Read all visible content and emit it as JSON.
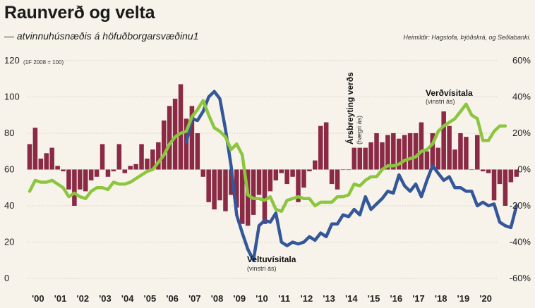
{
  "header": {
    "title": "Raunverð og velta",
    "subtitle": "— atvinnuhúsnæðis á höfuðborgarsvæðinu1",
    "source": "Heimildir: Hagstofa, Þjóðskrá, og Seðlabanki."
  },
  "colors": {
    "bars": "#8b2a45",
    "veltu": "#34579a",
    "verd": "#8cc63e",
    "background": "#f7f3ea"
  },
  "chart_data": {
    "type": "bar+line",
    "left_axis": {
      "note": "(1F 2008 = 100)",
      "ticks": [
        "0",
        "20",
        "40",
        "60",
        "80",
        "100",
        "120"
      ],
      "ylim": [
        0,
        120
      ]
    },
    "right_axis": {
      "ticks": [
        "-60%",
        "-40%",
        "-20%",
        "0%",
        "20%",
        "40%",
        "60%"
      ],
      "ylim": [
        -60,
        60
      ]
    },
    "x_labels": [
      "'00",
      "'01",
      "'02",
      "'03",
      "'04",
      "'05",
      "'06",
      "'07",
      "'08",
      "'09",
      "'10",
      "'11",
      "'12",
      "'13",
      "'14",
      "'15",
      "'16",
      "'17",
      "'18",
      "'19",
      "'20"
    ],
    "grid": true,
    "annotations": [
      {
        "id": "verd",
        "label": "Verðvísitala",
        "sub": "(vinstri ás)"
      },
      {
        "id": "veltu",
        "label": "Veltuvísitala",
        "sub": "(vinstri ás)"
      },
      {
        "id": "arsbr",
        "label": "Ársbreyting verðs",
        "sub": "(hægri ás)"
      }
    ],
    "series": [
      {
        "name": "Ársbreyting verðs",
        "axis": "right",
        "kind": "bar",
        "start": 2000.0,
        "step": 0.25,
        "values": [
          14,
          23,
          6,
          9,
          12,
          2,
          -1,
          -11,
          -20,
          -11,
          -12,
          -6,
          -4,
          14,
          -4,
          -1,
          14,
          -2,
          2,
          3,
          14,
          6,
          11,
          15,
          27,
          35,
          39,
          47,
          28,
          35,
          20,
          -4,
          -18,
          -22,
          -17,
          -23,
          -14,
          -21,
          -30,
          -31,
          -25,
          -14,
          -30,
          -12,
          -6,
          -2,
          -8,
          -4,
          -18,
          -10,
          -1,
          5,
          24,
          26,
          -8,
          -11,
          0,
          0,
          12,
          12,
          12,
          15,
          20,
          15,
          19,
          20,
          17,
          19,
          20,
          20,
          26,
          10,
          20,
          12,
          32,
          24,
          11,
          20,
          18,
          0,
          19,
          -1,
          -2,
          -17,
          -8,
          -20,
          -7,
          -4
        ]
      },
      {
        "name": "Veltuvísitala",
        "axis": "left",
        "kind": "line",
        "start": 2007.0,
        "step": 0.25,
        "values": [
          75,
          88,
          87,
          92,
          100,
          103,
          99,
          82,
          62,
          35,
          25,
          16,
          10,
          29,
          32,
          31,
          36,
          20,
          18,
          20,
          19,
          20,
          23,
          21,
          25,
          23,
          30,
          30,
          35,
          34,
          38,
          35,
          45,
          38,
          41,
          44,
          48,
          47,
          57,
          51,
          48,
          52,
          45,
          54,
          62,
          58,
          54,
          56,
          50,
          50,
          48,
          48,
          40,
          42,
          40,
          41,
          31,
          29,
          28,
          40
        ]
      },
      {
        "name": "Verðvísitala",
        "axis": "left",
        "kind": "line",
        "start": 2000.0,
        "step": 0.25,
        "values": [
          48,
          54,
          53,
          53,
          54,
          52,
          50,
          45,
          47,
          45,
          44,
          48,
          50,
          50,
          49,
          53,
          52,
          52,
          53,
          55,
          57,
          59,
          60,
          64,
          68,
          74,
          78,
          80,
          81,
          89,
          93,
          98,
          90,
          83,
          81,
          78,
          71,
          74,
          68,
          46,
          44,
          44,
          43,
          45,
          38,
          37,
          43,
          44,
          45,
          44,
          44,
          40,
          42,
          42,
          42,
          45,
          45,
          46,
          52,
          51,
          54,
          56,
          56,
          60,
          62,
          62,
          63,
          65,
          66,
          67,
          70,
          71,
          74,
          81,
          84,
          86,
          88,
          92,
          96,
          90,
          88,
          76,
          76,
          81,
          84,
          84
        ]
      }
    ]
  }
}
